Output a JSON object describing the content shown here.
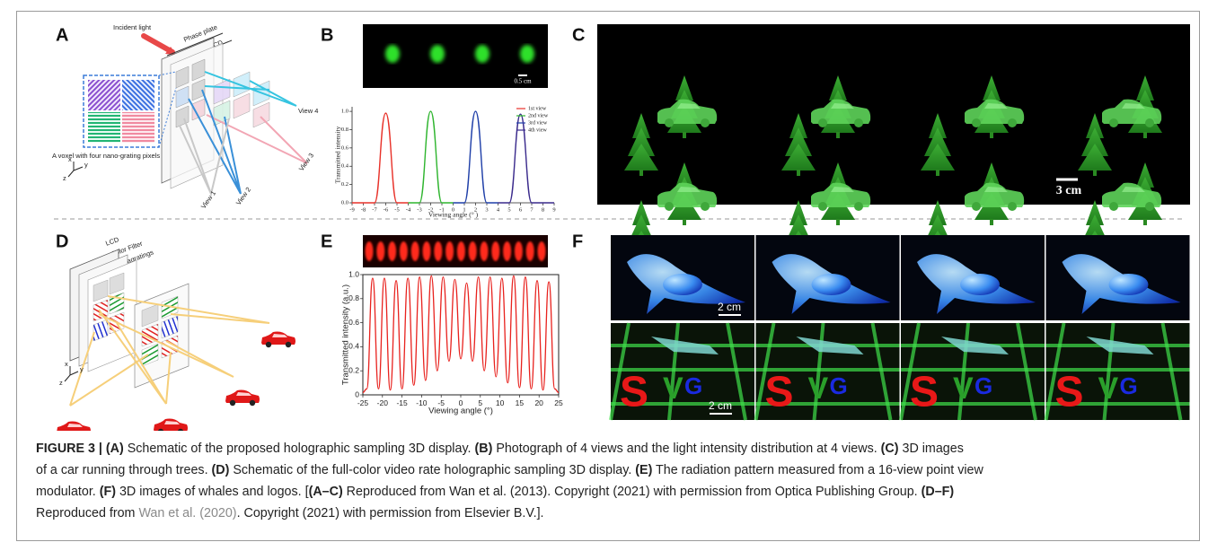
{
  "figure": {
    "panel_labels": [
      "A",
      "B",
      "C",
      "D",
      "E",
      "F"
    ],
    "schematic_a": {
      "incident_light": "Incident light",
      "phase_plate": "Phase plate",
      "lcd": "LCD",
      "voxel_caption": "A voxel with four nano-grating pixels",
      "views": [
        "View 4",
        "View 3",
        "View 2",
        "View 1"
      ],
      "axes": [
        "x",
        "y",
        "z"
      ]
    },
    "photo_b": {
      "scale_bar": "0.5 cm"
    },
    "photo_c": {
      "scale_bar": "3 cm"
    },
    "schematic_d": {
      "layers": [
        "LCD",
        "Color Filter",
        "Metagratings"
      ],
      "axes": [
        "x",
        "y",
        "z"
      ]
    },
    "photo_f": {
      "scale_bars": [
        "2 cm",
        "2 cm"
      ],
      "logo": [
        "S",
        "V",
        "G"
      ]
    },
    "caption": {
      "lines": [
        [
          {
            "text": "FIGURE 3 | (A)",
            "bold": true
          },
          {
            "text": " Schematic of the proposed holographic sampling 3D display. "
          },
          {
            "text": "(B)",
            "bold": true
          },
          {
            "text": " Photograph of 4 views and the light intensity distribution at 4 views. "
          },
          {
            "text": "(C)",
            "bold": true
          },
          {
            "text": " 3D images"
          }
        ],
        [
          {
            "text": "of a car running through trees. "
          },
          {
            "text": "(D)",
            "bold": true
          },
          {
            "text": " Schematic of the full-color video rate holographic sampling 3D display. "
          },
          {
            "text": "(E)",
            "bold": true
          },
          {
            "text": " The radiation pattern measured from a 16-view point view"
          }
        ],
        [
          {
            "text": "modulator. "
          },
          {
            "text": "(F)",
            "bold": true
          },
          {
            "text": " 3D images of whales and logos. ["
          },
          {
            "text": "(A–C)",
            "bold": true
          },
          {
            "text": " Reproduced from Wan et al. (2013). Copyright (2021) with permission from Optica Publishing Group. "
          },
          {
            "text": "(D–F)",
            "bold": true
          }
        ],
        [
          {
            "text": "Reproduced from "
          },
          {
            "text": "Wan et al. (2020)",
            "link": true
          },
          {
            "text": ". Copyright (2021) with permission from Elsevier B.V.]."
          }
        ]
      ]
    }
  },
  "chart_data": [
    {
      "type": "line",
      "x_label": "Viewing angle (° )",
      "y_label": "Transmitted intensity",
      "x": [
        -9,
        -7,
        -6,
        -5,
        -4,
        -3,
        -2,
        -1,
        0,
        1,
        2,
        3,
        4,
        5,
        6,
        7,
        9
      ],
      "series": [
        {
          "name": "1st view",
          "color": "#e8322a",
          "values": [
            0,
            0,
            0.98,
            0,
            0,
            null,
            null,
            null,
            null,
            null,
            null,
            null,
            null,
            null,
            null,
            null,
            null
          ]
        },
        {
          "name": "2nd view",
          "color": "#2fb52f",
          "values": [
            null,
            null,
            null,
            null,
            0,
            0,
            1.0,
            0,
            0,
            null,
            null,
            null,
            null,
            null,
            null,
            null,
            null
          ]
        },
        {
          "name": "3rd view",
          "color": "#1f3fa8",
          "values": [
            null,
            null,
            null,
            null,
            null,
            null,
            null,
            null,
            0,
            0,
            1.0,
            0,
            0,
            null,
            null,
            null,
            null
          ]
        },
        {
          "name": "4th view",
          "color": "#3a2a8c",
          "values": [
            null,
            null,
            null,
            null,
            null,
            null,
            null,
            null,
            null,
            null,
            null,
            null,
            0,
            0,
            0.97,
            0,
            0
          ]
        }
      ],
      "xlim": [
        -9,
        9
      ],
      "ylim": [
        0,
        1.05
      ],
      "xticks": [
        -9,
        -8,
        -7,
        -6,
        -5,
        -4,
        -3,
        -2,
        -1,
        0,
        1,
        2,
        3,
        4,
        5,
        6,
        7,
        8,
        9
      ],
      "yticks": [
        {
          "value": 0,
          "label": "0.0"
        },
        {
          "value": 0.2,
          "label": "0.2"
        },
        {
          "value": 0.4,
          "label": "0.4"
        },
        {
          "value": 0.6,
          "label": "0.6"
        },
        {
          "value": 0.8,
          "label": "0.8"
        },
        {
          "value": 1.0,
          "label": "1.0"
        }
      ],
      "legend": "upper right"
    },
    {
      "type": "line",
      "x_label": "Viewing angle (°)",
      "y_label": "Transmitted intensity (a.u.)",
      "x": [
        -25,
        -24,
        -22.5,
        -21,
        -19.5,
        -18,
        -16.5,
        -15,
        -13.5,
        -12,
        -10.5,
        -9,
        -7.5,
        -6,
        -4.5,
        -3,
        -1.5,
        0,
        1.5,
        3,
        4.5,
        6,
        7.5,
        9,
        10.5,
        12,
        13.5,
        15,
        16.5,
        18,
        19.5,
        21,
        22.5,
        24,
        25
      ],
      "series": [
        {
          "color": "#e8221e",
          "values": [
            0.02,
            0.05,
            0.97,
            0.05,
            0.97,
            0.04,
            0.95,
            0.05,
            0.97,
            0.08,
            0.98,
            0.12,
            0.99,
            0.2,
            0.98,
            0.28,
            0.96,
            0.3,
            0.93,
            0.28,
            0.98,
            0.2,
            0.98,
            0.15,
            0.97,
            0.1,
            0.99,
            0.06,
            0.98,
            0.05,
            0.95,
            0.04,
            0.94,
            0.05,
            0.02
          ]
        }
      ],
      "xlim": [
        -25,
        25
      ],
      "ylim": [
        0,
        1.0
      ],
      "xticks": [
        -25,
        -20,
        -15,
        -10,
        -5,
        0,
        5,
        10,
        15,
        20,
        25
      ],
      "yticks": [
        0,
        0.2,
        0.4,
        0.6,
        0.8,
        {
          "value": 1.0,
          "label": "1.0"
        }
      ]
    }
  ]
}
